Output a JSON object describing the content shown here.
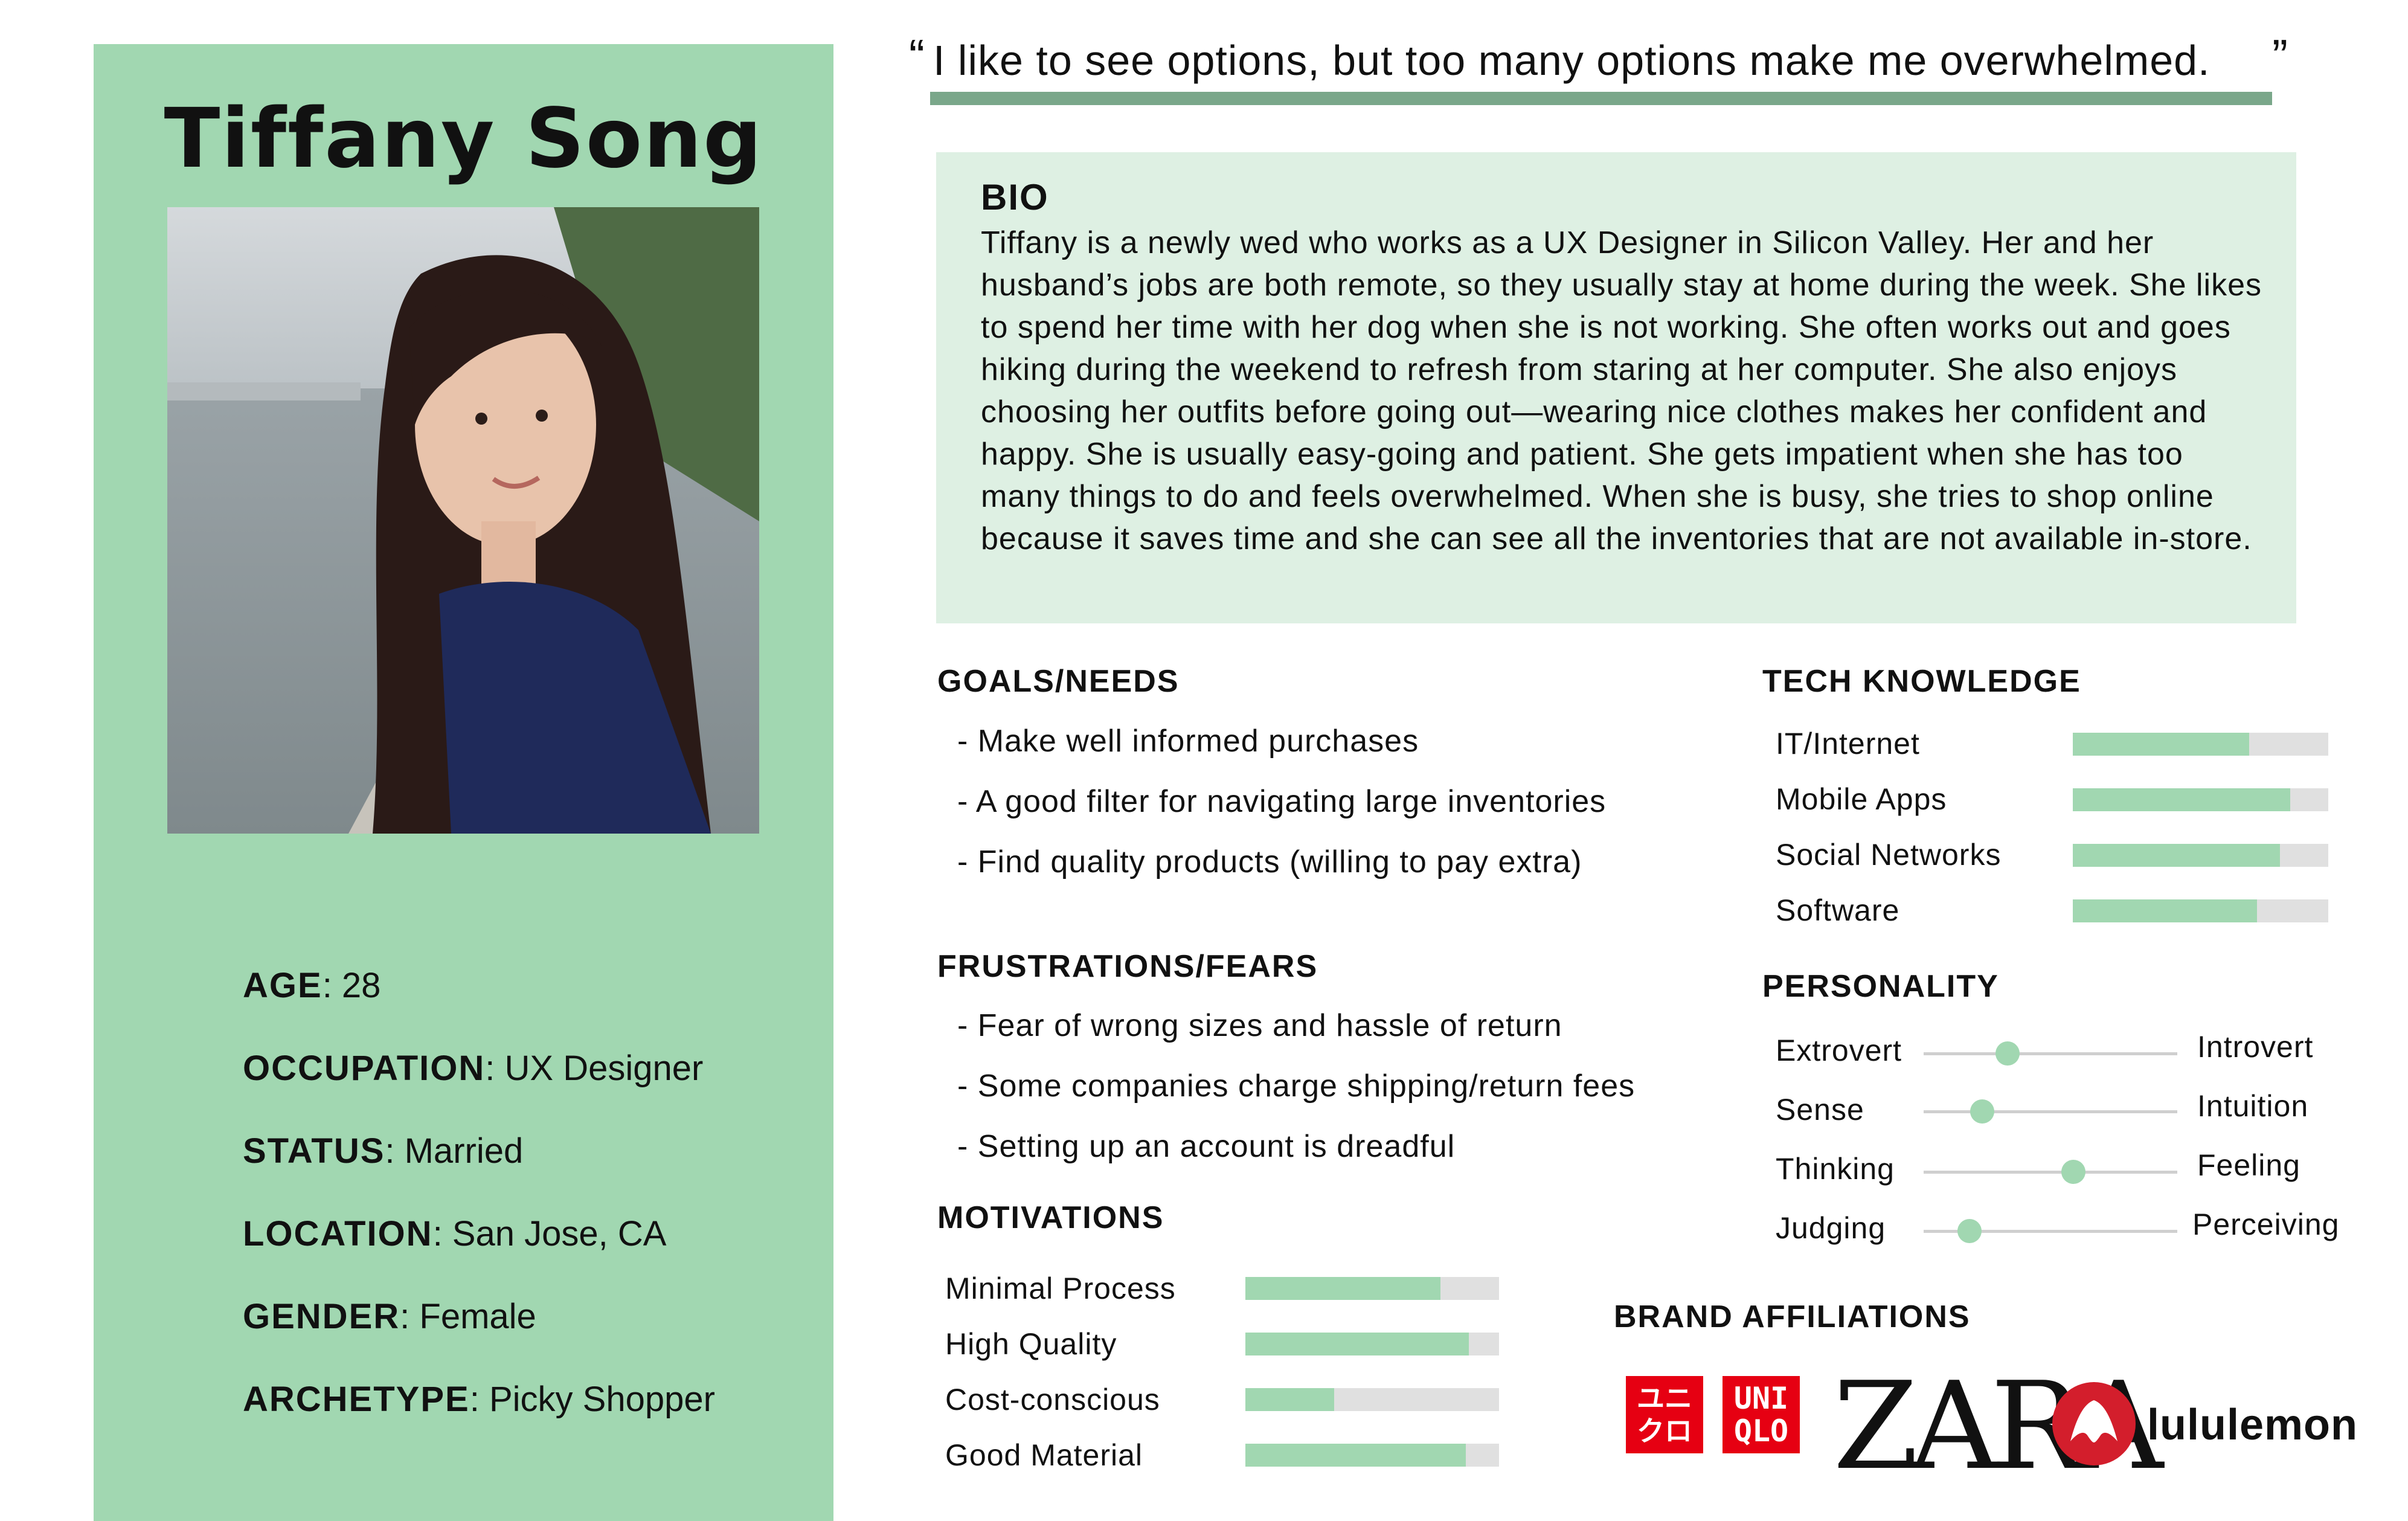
{
  "persona": {
    "name": "Tiffany Song",
    "facts": [
      {
        "label": "AGE",
        "value": ": 28"
      },
      {
        "label": "OCCUPATION",
        "value": ": UX Designer"
      },
      {
        "label": "STATUS",
        "value": ": Married"
      },
      {
        "label": "LOCATION",
        "value": ": San Jose, CA"
      },
      {
        "label": "GENDER",
        "value": ": Female"
      },
      {
        "label": "ARCHETYPE",
        "value": ": Picky Shopper"
      }
    ]
  },
  "quote": {
    "open": "“",
    "text": "I like to see options, but too many options make me overwhelmed.",
    "close": "”"
  },
  "bio": {
    "title": "BIO",
    "text": "Tiffany is a newly wed who works as a UX Designer in Silicon Valley. Her and her husband’s jobs are both remote, so they usually stay at home during the week. She likes to spend her time with her dog when she is not working. She often works out and goes hiking during the weekend to refresh from staring at her computer. She also enjoys choosing her outfits before going out—wearing nice clothes makes her confident and happy. She is usually easy-going and patient. She gets impatient when she has too many things to do and feels overwhelmed. When she is busy, she tries to shop online because it saves time and she can see all the inventories that are not available in-store."
  },
  "goals": {
    "title": "GOALS/NEEDS",
    "items": [
      "- Make well informed purchases",
      "- A good filter for navigating large inventories",
      "- Find quality products (willing to pay extra)"
    ]
  },
  "frustrations": {
    "title": "FRUSTRATIONS/FEARS",
    "items": [
      "- Fear of wrong sizes and hassle of return",
      "- Some companies charge shipping/return fees",
      "- Setting up an account is dreadful"
    ]
  },
  "motivations": {
    "title": "MOTIVATIONS",
    "items": [
      {
        "label": "Minimal Process",
        "level": 0.77
      },
      {
        "label": "High Quality",
        "level": 0.88
      },
      {
        "label": "Cost-conscious",
        "level": 0.35
      },
      {
        "label": "Good Material",
        "level": 0.87
      }
    ]
  },
  "tech": {
    "title": "TECH KNOWLEDGE",
    "items": [
      {
        "label": "IT/Internet",
        "level": 0.69
      },
      {
        "label": "Mobile Apps",
        "level": 0.85
      },
      {
        "label": "Social Networks",
        "level": 0.81
      },
      {
        "label": "Software",
        "level": 0.72
      }
    ]
  },
  "personality": {
    "title": "PERSONALITY",
    "items": [
      {
        "left": "Extrovert",
        "right": "Introvert",
        "value": 0.33
      },
      {
        "left": "Sense",
        "right": "Intuition",
        "value": 0.23
      },
      {
        "left": "Thinking",
        "right": "Feeling",
        "value": 0.59
      },
      {
        "left": "Judging",
        "right": "Perceiving",
        "value": 0.18
      }
    ]
  },
  "brands": {
    "title": "BRAND AFFILIATIONS",
    "uniqlo_katakana": [
      "ユニ",
      "クロ"
    ],
    "uniqlo_latin": [
      "UNI",
      "QLO"
    ],
    "zara": "ZARA",
    "lululemon": "lululemon"
  },
  "colors": {
    "accent_green": "#a1d7b1",
    "bio_bg": "#def0e3",
    "uniqlo_red": "#e60012",
    "lululemon_red": "#d31e2c"
  }
}
